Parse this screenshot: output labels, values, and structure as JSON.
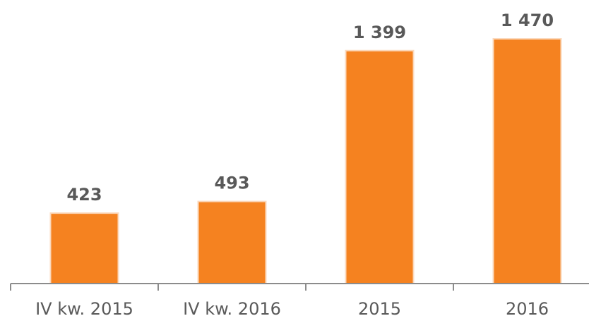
{
  "chart_data": {
    "type": "bar",
    "categories": [
      "IV kw. 2015",
      "IV kw. 2016",
      "2015",
      "2016"
    ],
    "values": [
      423,
      493,
      1399,
      1470
    ],
    "value_labels": [
      "423",
      "493",
      "1 399",
      "1 470"
    ],
    "color": "#f58220"
  }
}
